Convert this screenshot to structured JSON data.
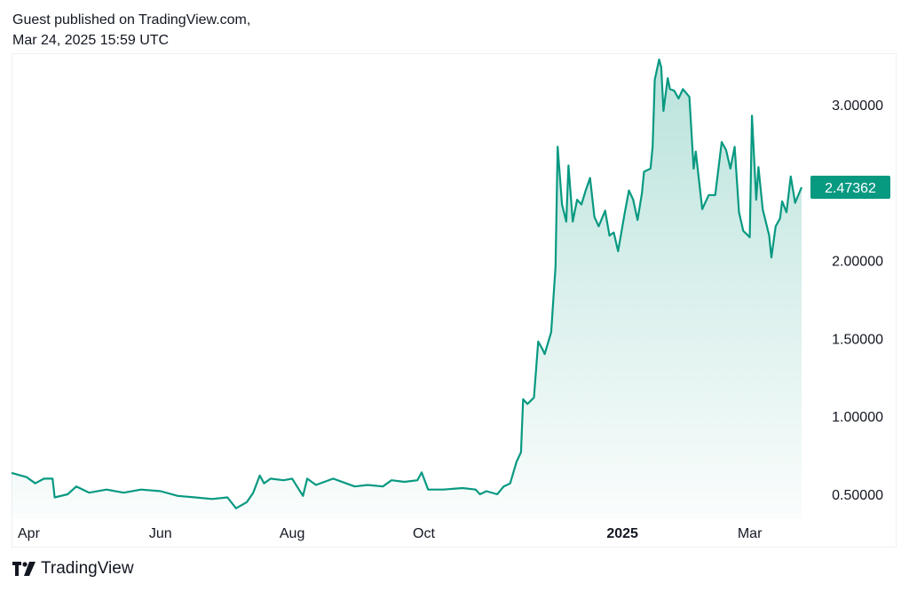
{
  "header": {
    "line1": "Guest published on TradingView.com,",
    "line2": "Mar 24, 2025 15:59 UTC"
  },
  "footer": {
    "logo_text": "TradingView"
  },
  "colors": {
    "line": "#089981",
    "label_bg": "#089981"
  },
  "chart_data": {
    "type": "area",
    "title": "",
    "xlabel": "",
    "ylabel": "",
    "x_unit": "days since Mar 24, 2024",
    "xlim": [
      0,
      366
    ],
    "ylim": [
      0.42,
      3.7
    ],
    "y_ticks": [
      {
        "value": 0.5,
        "label": "0.50000"
      },
      {
        "value": 1.0,
        "label": "1.00000"
      },
      {
        "value": 1.5,
        "label": "1.50000"
      },
      {
        "value": 2.0,
        "label": "2.00000"
      },
      {
        "value": 3.0,
        "label": "3.00000"
      }
    ],
    "x_ticks": [
      {
        "day": 8,
        "label": "Apr",
        "bold": false
      },
      {
        "day": 69,
        "label": "Jun",
        "bold": false
      },
      {
        "day": 130,
        "label": "Aug",
        "bold": false
      },
      {
        "day": 191,
        "label": "Oct",
        "bold": false
      },
      {
        "day": 283,
        "label": "2025",
        "bold": true
      },
      {
        "day": 342,
        "label": "Mar",
        "bold": false
      }
    ],
    "last_price_label": "2.47362",
    "grid": false,
    "points": [
      [
        0,
        0.637
      ],
      [
        7,
        0.61
      ],
      [
        11,
        0.57
      ],
      [
        15,
        0.6
      ],
      [
        19,
        0.6
      ],
      [
        20,
        0.48
      ],
      [
        26,
        0.5
      ],
      [
        30,
        0.55
      ],
      [
        36,
        0.51
      ],
      [
        44,
        0.53
      ],
      [
        52,
        0.51
      ],
      [
        60,
        0.53
      ],
      [
        69,
        0.52
      ],
      [
        77,
        0.49
      ],
      [
        85,
        0.48
      ],
      [
        93,
        0.47
      ],
      [
        100,
        0.48
      ],
      [
        104,
        0.41
      ],
      [
        109,
        0.45
      ],
      [
        112,
        0.51
      ],
      [
        115,
        0.62
      ],
      [
        117,
        0.57
      ],
      [
        120,
        0.6
      ],
      [
        126,
        0.59
      ],
      [
        130,
        0.6
      ],
      [
        135,
        0.49
      ],
      [
        137,
        0.6
      ],
      [
        141,
        0.56
      ],
      [
        149,
        0.6
      ],
      [
        155,
        0.57
      ],
      [
        159,
        0.55
      ],
      [
        165,
        0.56
      ],
      [
        172,
        0.55
      ],
      [
        176,
        0.59
      ],
      [
        182,
        0.58
      ],
      [
        188,
        0.59
      ],
      [
        190,
        0.64
      ],
      [
        193,
        0.53
      ],
      [
        200,
        0.53
      ],
      [
        209,
        0.54
      ],
      [
        215,
        0.53
      ],
      [
        217,
        0.5
      ],
      [
        220,
        0.52
      ],
      [
        225,
        0.5
      ],
      [
        228,
        0.55
      ],
      [
        231,
        0.57
      ],
      [
        234,
        0.71
      ],
      [
        236,
        0.77
      ],
      [
        237,
        1.11
      ],
      [
        239,
        1.08
      ],
      [
        242,
        1.12
      ],
      [
        244,
        1.48
      ],
      [
        246,
        1.43
      ],
      [
        247,
        1.4
      ],
      [
        250,
        1.54
      ],
      [
        252,
        1.96
      ],
      [
        253,
        2.73
      ],
      [
        255,
        2.36
      ],
      [
        257,
        2.25
      ],
      [
        258,
        2.61
      ],
      [
        260,
        2.25
      ],
      [
        262,
        2.39
      ],
      [
        264,
        2.36
      ],
      [
        266,
        2.45
      ],
      [
        268,
        2.53
      ],
      [
        270,
        2.28
      ],
      [
        272,
        2.22
      ],
      [
        275,
        2.32
      ],
      [
        277,
        2.16
      ],
      [
        279,
        2.18
      ],
      [
        281,
        2.06
      ],
      [
        284,
        2.3
      ],
      [
        286,
        2.45
      ],
      [
        288,
        2.39
      ],
      [
        290,
        2.26
      ],
      [
        292,
        2.43
      ],
      [
        293,
        2.57
      ],
      [
        296,
        2.59
      ],
      [
        297,
        2.73
      ],
      [
        298,
        3.16
      ],
      [
        300,
        3.29
      ],
      [
        301,
        3.24
      ],
      [
        302,
        2.96
      ],
      [
        304,
        3.17
      ],
      [
        305,
        3.1
      ],
      [
        307,
        3.09
      ],
      [
        309,
        3.04
      ],
      [
        311,
        3.1
      ],
      [
        314,
        3.05
      ],
      [
        316,
        2.59
      ],
      [
        317,
        2.7
      ],
      [
        319,
        2.45
      ],
      [
        320,
        2.33
      ],
      [
        323,
        2.42
      ],
      [
        326,
        2.42
      ],
      [
        329,
        2.76
      ],
      [
        331,
        2.71
      ],
      [
        333,
        2.59
      ],
      [
        335,
        2.73
      ],
      [
        337,
        2.31
      ],
      [
        339,
        2.19
      ],
      [
        342,
        2.15
      ],
      [
        343,
        2.93
      ],
      [
        345,
        2.39
      ],
      [
        346,
        2.6
      ],
      [
        348,
        2.33
      ],
      [
        351,
        2.16
      ],
      [
        352,
        2.02
      ],
      [
        354,
        2.22
      ],
      [
        356,
        2.27
      ],
      [
        357,
        2.38
      ],
      [
        359,
        2.31
      ],
      [
        361,
        2.54
      ],
      [
        363,
        2.37
      ],
      [
        366,
        2.47
      ]
    ]
  }
}
